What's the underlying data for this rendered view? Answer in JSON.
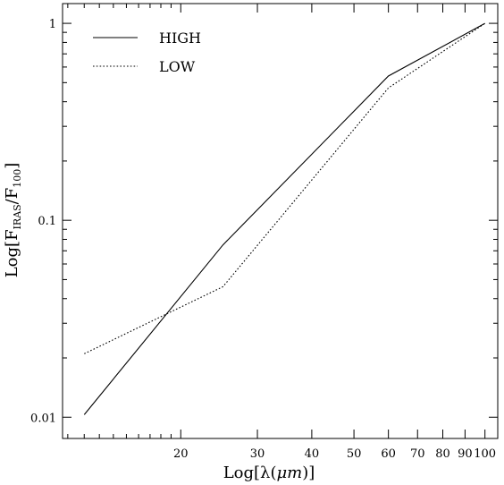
{
  "chart_data": {
    "type": "line",
    "xlabel_parts": {
      "prefix": "Log[λ(",
      "unit": "μm",
      "suffix": ")]"
    },
    "ylabel_parts": {
      "prefix": "Log[F",
      "sub": "IRAS",
      "mid": "/F",
      "sub2": "100",
      "suffix": "]"
    },
    "x_scale": "log",
    "y_scale": "log",
    "xlim": [
      10.7,
      107
    ],
    "ylim": [
      0.0078,
      1.26
    ],
    "x_ticks": [
      {
        "value": 20,
        "label": "20"
      },
      {
        "value": 30,
        "label": "30"
      },
      {
        "value": 40,
        "label": "40"
      },
      {
        "value": 50,
        "label": "50"
      },
      {
        "value": 60,
        "label": "60"
      },
      {
        "value": 70,
        "label": "70"
      },
      {
        "value": 80,
        "label": "80"
      },
      {
        "value": 90,
        "label": "90"
      },
      {
        "value": 100,
        "label": "100"
      }
    ],
    "y_ticks": [
      {
        "value": 0.01,
        "label": "0.01"
      },
      {
        "value": 0.1,
        "label": "0.1"
      },
      {
        "value": 1,
        "label": "1"
      }
    ],
    "legend_position": "top-left",
    "grid": false,
    "series": [
      {
        "name": "HIGH",
        "style": "solid",
        "color": "#000000",
        "x": [
          12,
          25,
          60,
          100
        ],
        "y": [
          0.0103,
          0.075,
          0.54,
          1.0
        ]
      },
      {
        "name": "LOW",
        "style": "dotted",
        "color": "#000000",
        "x": [
          12,
          25,
          60,
          100
        ],
        "y": [
          0.021,
          0.046,
          0.47,
          1.0
        ]
      }
    ]
  }
}
